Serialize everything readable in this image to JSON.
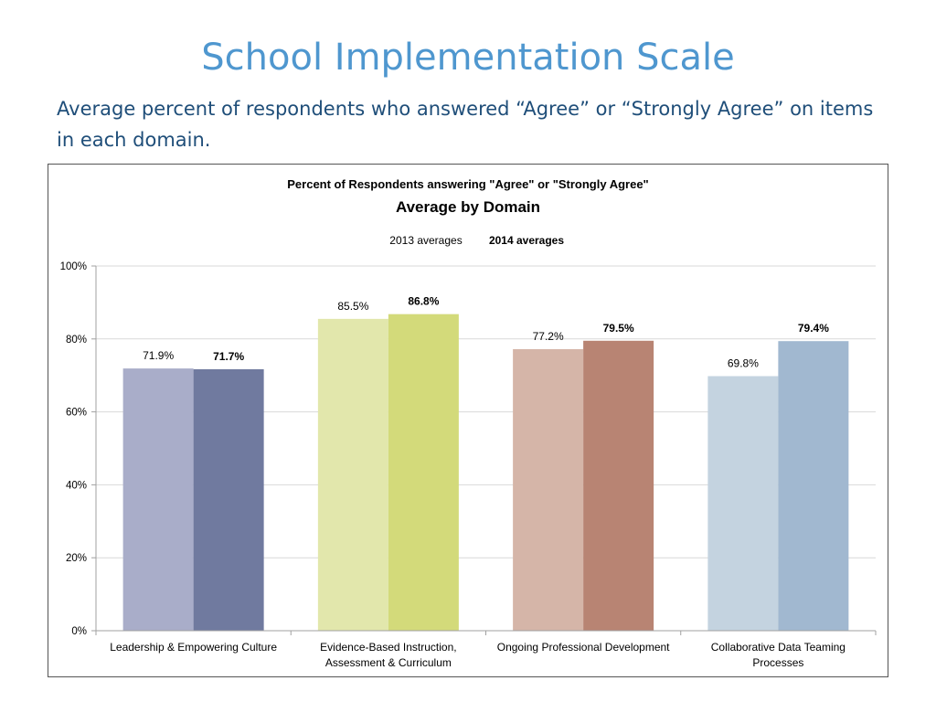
{
  "slide": {
    "title": "School Implementation Scale",
    "subtitle": "Average percent of respondents who answered “Agree” or “Strongly Agree” on items in each domain."
  },
  "chart_data": {
    "type": "bar",
    "title": "Percent of Respondents answering \"Agree\" or \"Strongly Agree\"",
    "subtitle": "Average by Domain",
    "legend_position": "top",
    "legend_style": "text labels only",
    "grid": true,
    "ylim": [
      0,
      100
    ],
    "yticks": [
      "0%",
      "20%",
      "40%",
      "60%",
      "80%",
      "100%"
    ],
    "categories": [
      [
        "Leadership & Empowering Culture"
      ],
      [
        "Evidence-Based Instruction,",
        "Assessment & Curriculum"
      ],
      [
        "Ongoing Professional Development"
      ],
      [
        "Collaborative Data Teaming",
        "Processes"
      ]
    ],
    "series": [
      {
        "name": "2013 averages",
        "values": [
          71.9,
          85.5,
          77.2,
          69.8
        ],
        "labels": [
          "71.9%",
          "85.5%",
          "77.2%",
          "69.8%"
        ],
        "bold": false
      },
      {
        "name": "2014 averages",
        "values": [
          71.7,
          86.8,
          79.5,
          79.4
        ],
        "labels": [
          "71.7%",
          "86.8%",
          "79.5%",
          "79.4%"
        ],
        "bold": true
      }
    ],
    "colors": [
      [
        "#a9adc9",
        "#707a9f"
      ],
      [
        "#e2e7ac",
        "#d3da7a"
      ],
      [
        "#d5b5a8",
        "#b88473"
      ],
      [
        "#c4d3e0",
        "#a1b8d0"
      ]
    ],
    "gridline_color": "#d9d9d9",
    "axis_color": "#a0a0a0"
  }
}
